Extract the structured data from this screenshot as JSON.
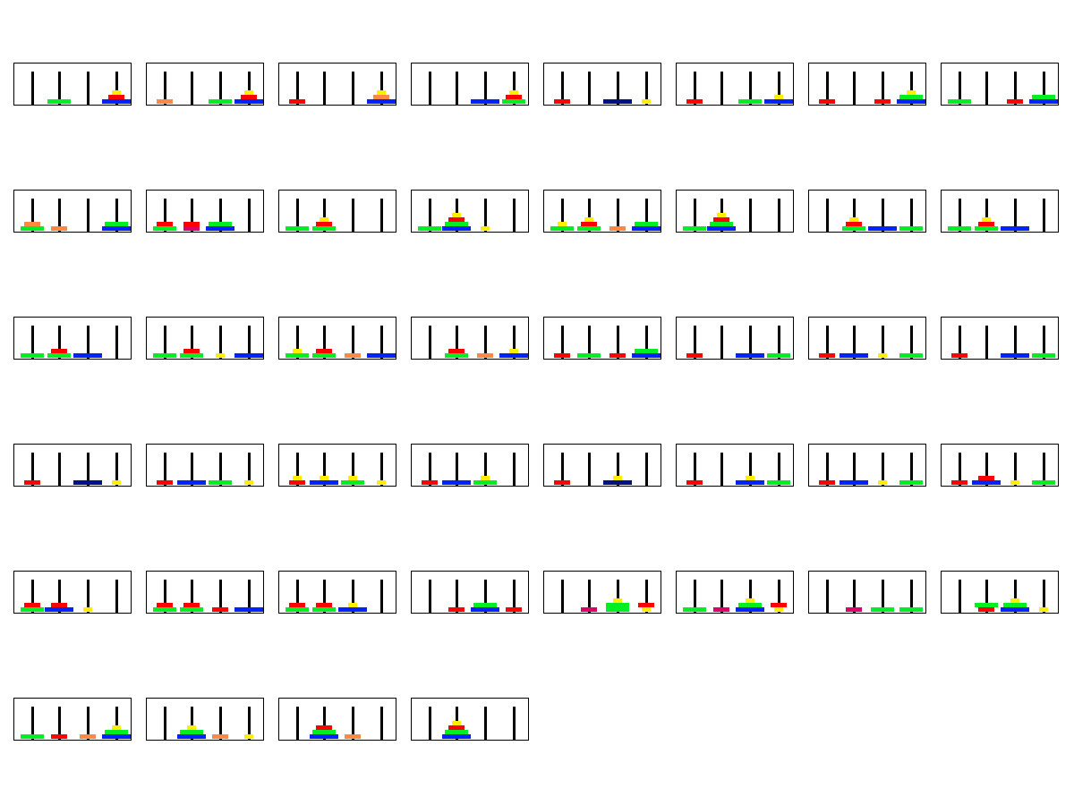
{
  "colors": {
    "Y": "#ffee00",
    "R": "#ff0000",
    "G": "#00ee22",
    "B": "#0022ff",
    "O": "#ff8844",
    "K": "#001188",
    "P": "#dd0066"
  },
  "disk_widths": {
    "Y": 0.3,
    "R": 0.55,
    "G": 0.8,
    "B": 1.0,
    "O": 0.55,
    "K": 1.0,
    "P": 0.55
  },
  "frames": [
    [
      [],
      [
        "G"
      ],
      [],
      [
        "B",
        "R",
        "Y"
      ]
    ],
    [
      [
        "O"
      ],
      [],
      [
        "G"
      ],
      [
        "B",
        "R",
        "Y"
      ]
    ],
    [
      [
        "R"
      ],
      [],
      [],
      [
        "B",
        "O",
        "Y"
      ]
    ],
    [
      [],
      [],
      [
        "B"
      ],
      [
        "G",
        "R",
        "Y"
      ]
    ],
    [
      [
        "R"
      ],
      [],
      [
        "K"
      ],
      [
        "Y"
      ]
    ],
    [
      [
        "R"
      ],
      [],
      [
        "G"
      ],
      [
        "B",
        "Y"
      ]
    ],
    [
      [
        "R"
      ],
      [],
      [
        "R"
      ],
      [
        "B",
        "G",
        "Y"
      ]
    ],
    [
      [
        "G"
      ],
      [],
      [
        "R"
      ],
      [
        "B",
        "G"
      ]
    ],
    [
      [
        "G",
        "O"
      ],
      [
        "O"
      ],
      [],
      [
        "B",
        "G"
      ]
    ],
    [
      [
        "G",
        "R"
      ],
      [
        "P",
        "R"
      ],
      [
        "B",
        "G"
      ],
      []
    ],
    [
      [
        "G"
      ],
      [
        "G",
        "R",
        "Y"
      ],
      [],
      []
    ],
    [
      [
        "G"
      ],
      [
        "B",
        "G",
        "R",
        "Y"
      ],
      [
        "Y"
      ],
      []
    ],
    [
      [
        "G",
        "Y"
      ],
      [
        "G",
        "R",
        "Y"
      ],
      [
        "O"
      ],
      [
        "B",
        "G"
      ]
    ],
    [
      [
        "G"
      ],
      [
        "B",
        "G",
        "R",
        "Y"
      ],
      [],
      []
    ],
    [
      [],
      [
        "G",
        "R",
        "Y"
      ],
      [
        "B"
      ],
      [
        "G"
      ]
    ],
    [
      [
        "G"
      ],
      [
        "G",
        "R",
        "Y"
      ],
      [
        "B"
      ],
      []
    ],
    [
      [
        "G"
      ],
      [
        "G",
        "R"
      ],
      [
        "B"
      ],
      []
    ],
    [
      [
        "G"
      ],
      [
        "G",
        "R"
      ],
      [
        "Y"
      ],
      [
        "B"
      ]
    ],
    [
      [
        "G",
        "Y"
      ],
      [
        "G",
        "R"
      ],
      [
        "O"
      ],
      [
        "B"
      ]
    ],
    [
      [],
      [
        "G",
        "R"
      ],
      [
        "O"
      ],
      [
        "B",
        "Y"
      ]
    ],
    [
      [
        "R"
      ],
      [
        "G"
      ],
      [
        "R"
      ],
      [
        "B",
        "G"
      ]
    ],
    [
      [
        "R"
      ],
      [],
      [
        "B"
      ],
      [
        "G"
      ]
    ],
    [
      [
        "R"
      ],
      [
        "B"
      ],
      [
        "Y"
      ],
      [
        "G"
      ]
    ],
    [
      [
        "R"
      ],
      [],
      [
        "B"
      ],
      [
        "G"
      ]
    ],
    [
      [
        "R"
      ],
      [],
      [
        "K"
      ],
      [
        "Y"
      ]
    ],
    [
      [
        "R"
      ],
      [
        "B"
      ],
      [
        "G"
      ],
      [
        "Y"
      ]
    ],
    [
      [
        "R",
        "Y"
      ],
      [
        "B",
        "Y"
      ],
      [
        "G",
        "Y"
      ],
      [
        "Y"
      ]
    ],
    [
      [
        "R"
      ],
      [
        "B"
      ],
      [
        "G",
        "Y"
      ],
      []
    ],
    [
      [
        "R"
      ],
      [],
      [
        "K",
        "Y"
      ],
      []
    ],
    [
      [
        "R"
      ],
      [],
      [
        "B",
        "Y"
      ],
      [
        "G"
      ]
    ],
    [
      [
        "R"
      ],
      [
        "B"
      ],
      [
        "Y"
      ],
      [
        "G"
      ]
    ],
    [
      [
        "R"
      ],
      [
        "B",
        "R"
      ],
      [
        "Y"
      ],
      [
        "G"
      ]
    ],
    [
      [
        "G",
        "R"
      ],
      [
        "B",
        "R"
      ],
      [
        "Y"
      ],
      []
    ],
    [
      [
        "G",
        "R"
      ],
      [
        "G",
        "R"
      ],
      [
        "R"
      ],
      [
        "B"
      ]
    ],
    [
      [
        "G",
        "R"
      ],
      [
        "G",
        "R"
      ],
      [
        "B",
        "Y"
      ],
      []
    ],
    [
      [],
      [
        "R"
      ],
      [
        "B",
        "G"
      ],
      [
        "R"
      ]
    ],
    [
      [],
      [
        "P"
      ],
      [
        "G",
        "G",
        "Y"
      ],
      [
        "Y",
        "R"
      ]
    ],
    [
      [
        "G"
      ],
      [
        "P"
      ],
      [
        "B",
        "G",
        "Y"
      ],
      [
        "Y",
        "R"
      ]
    ],
    [
      [],
      [
        "P"
      ],
      [
        "G"
      ],
      [
        "G"
      ]
    ],
    [
      [],
      [
        "R",
        "G"
      ],
      [
        "B",
        "G",
        "Y"
      ],
      [
        "Y"
      ]
    ],
    [
      [
        "G"
      ],
      [
        "R"
      ],
      [
        "O"
      ],
      [
        "B",
        "G",
        "Y"
      ]
    ],
    [
      [],
      [
        "B",
        "G",
        "Y"
      ],
      [
        "O"
      ],
      [
        "Y"
      ]
    ],
    [
      [],
      [
        "B",
        "G",
        "R"
      ],
      [
        "O"
      ],
      []
    ],
    [
      [],
      [
        "B",
        "G",
        "R",
        "Y"
      ],
      [],
      []
    ]
  ]
}
